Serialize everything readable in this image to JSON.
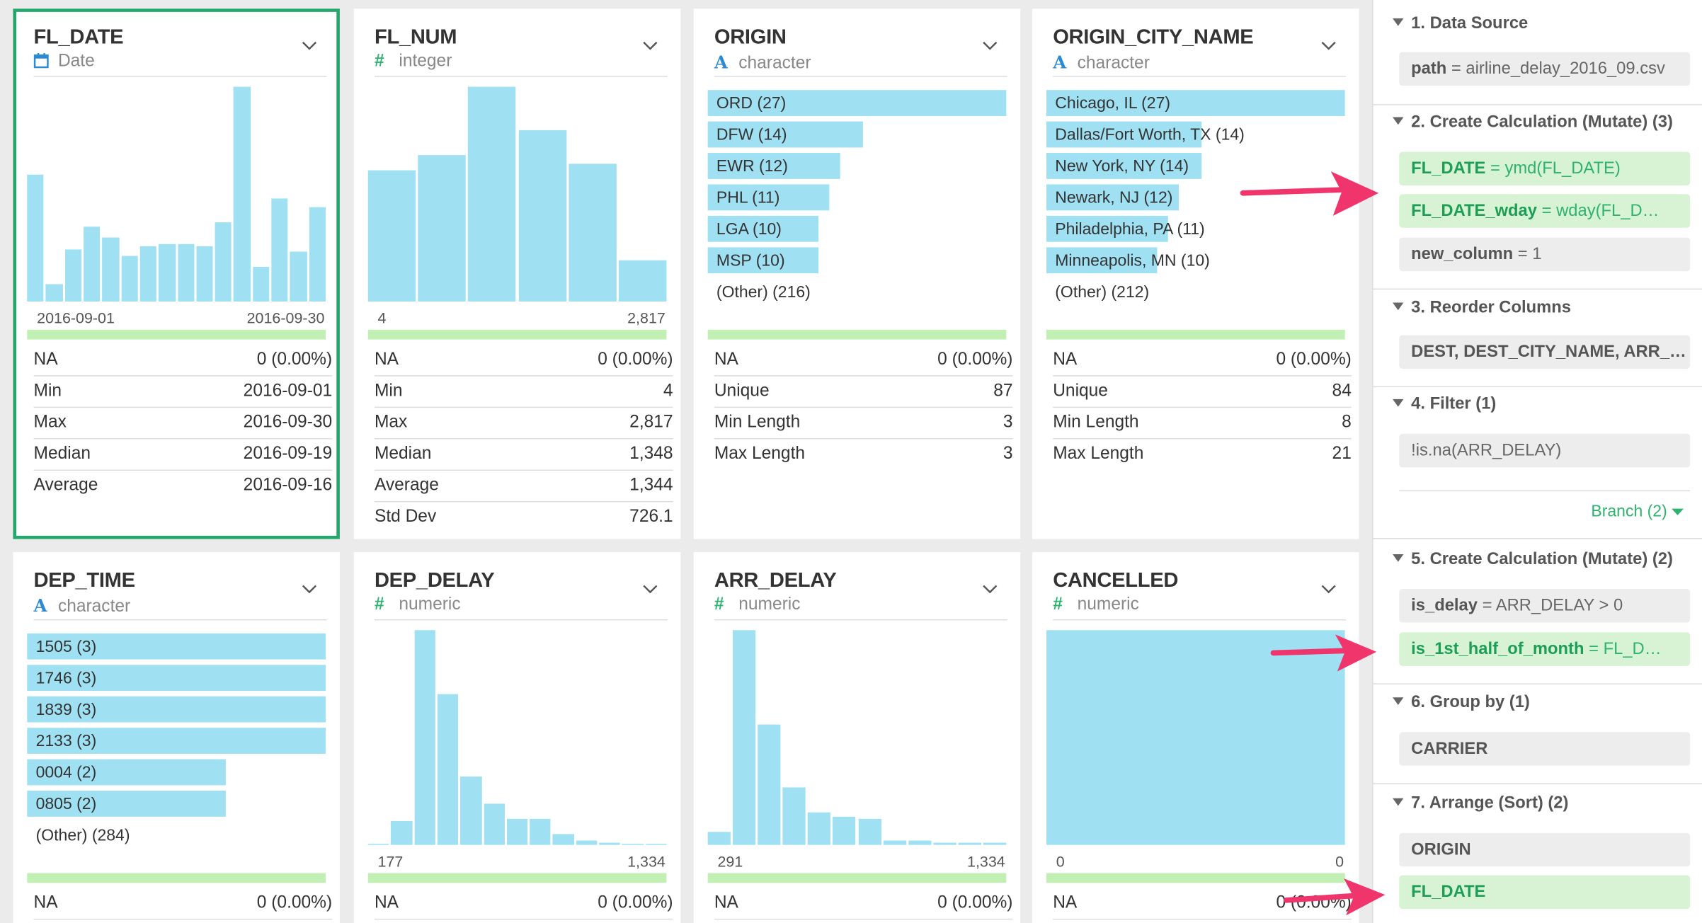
{
  "colors": {
    "bar": "#9fe0f2",
    "accent_green": "#22a86a",
    "arrow": "#f0356c",
    "quality_bar": "#c2efb4"
  },
  "columns": [
    {
      "name": "FL_DATE",
      "type": "Date",
      "icon": "calendar-icon",
      "hist": [
        0.59,
        0.08,
        0.24,
        0.35,
        0.3,
        0.21,
        0.26,
        0.27,
        0.27,
        0.26,
        0.37,
        1.0,
        0.16,
        0.48,
        0.23,
        0.44
      ],
      "axis_min": "2016-09-01",
      "axis_max": "2016-09-30",
      "stats": [
        [
          "NA",
          "0 (0.00%)"
        ],
        [
          "Min",
          "2016-09-01"
        ],
        [
          "Max",
          "2016-09-30"
        ],
        [
          "Median",
          "2016-09-19"
        ],
        [
          "Average",
          "2016-09-16"
        ]
      ]
    },
    {
      "name": "FL_NUM",
      "type": "integer",
      "icon": "hash-icon",
      "hist": [
        0.61,
        0.68,
        1.0,
        0.8,
        0.64,
        0.19
      ],
      "axis_min": "4",
      "axis_max": "2,817",
      "stats": [
        [
          "NA",
          "0 (0.00%)"
        ],
        [
          "Min",
          "4"
        ],
        [
          "Max",
          "2,817"
        ],
        [
          "Median",
          "1,348"
        ],
        [
          "Average",
          "1,344"
        ],
        [
          "Std Dev",
          "726.1"
        ]
      ]
    },
    {
      "name": "ORIGIN",
      "type": "character",
      "icon": "letter-a-icon",
      "cats": [
        [
          "ORD (27)",
          27
        ],
        [
          "DFW (14)",
          14
        ],
        [
          "EWR (12)",
          12
        ],
        [
          "PHL (11)",
          11
        ],
        [
          "LGA (10)",
          10
        ],
        [
          "MSP (10)",
          10
        ]
      ],
      "other": "(Other) (216)",
      "stats": [
        [
          "NA",
          "0 (0.00%)"
        ],
        [
          "Unique",
          "87"
        ],
        [
          "Min Length",
          "3"
        ],
        [
          "Max Length",
          "3"
        ]
      ]
    },
    {
      "name": "ORIGIN_CITY_NAME",
      "type": "character",
      "icon": "letter-a-icon",
      "cats": [
        [
          "Chicago, IL (27)",
          27
        ],
        [
          "Dallas/Fort Worth, TX (14)",
          14
        ],
        [
          "New York, NY (14)",
          14
        ],
        [
          "Newark, NJ (12)",
          12
        ],
        [
          "Philadelphia, PA (11)",
          11
        ],
        [
          "Minneapolis, MN (10)",
          10
        ]
      ],
      "other": "(Other) (212)",
      "stats": [
        [
          "NA",
          "0 (0.00%)"
        ],
        [
          "Unique",
          "84"
        ],
        [
          "Min Length",
          "8"
        ],
        [
          "Max Length",
          "21"
        ]
      ]
    },
    {
      "name": "DEP_TIME",
      "type": "character",
      "icon": "letter-a-icon",
      "cats": [
        [
          "1505 (3)",
          3
        ],
        [
          "1746 (3)",
          3
        ],
        [
          "1839 (3)",
          3
        ],
        [
          "2133 (3)",
          3
        ],
        [
          "0004 (2)",
          2
        ],
        [
          "0805 (2)",
          2
        ]
      ],
      "other": "(Other) (284)",
      "stats": [
        [
          "NA",
          "0 (0.00%)"
        ]
      ]
    },
    {
      "name": "DEP_DELAY",
      "type": "numeric",
      "icon": "hash-icon",
      "hist": [
        0.0,
        0.11,
        1.0,
        0.7,
        0.32,
        0.19,
        0.12,
        0.12,
        0.05,
        0.02,
        0.01,
        0.0,
        0.0
      ],
      "axis_min": "177",
      "axis_max": "1,334",
      "stats": [
        [
          "NA",
          "0 (0.00%)"
        ]
      ]
    },
    {
      "name": "ARR_DELAY",
      "type": "numeric",
      "icon": "hash-icon",
      "hist": [
        0.06,
        1.0,
        0.56,
        0.27,
        0.15,
        0.13,
        0.12,
        0.02,
        0.02,
        0.01,
        0.01,
        0.01
      ],
      "axis_min": "291",
      "axis_max": "1,334",
      "stats": [
        [
          "NA",
          "0 (0.00%)"
        ]
      ]
    },
    {
      "name": "CANCELLED",
      "type": "numeric",
      "icon": "hash-icon",
      "hist": [
        1.0
      ],
      "axis_min": "0",
      "axis_max": "0",
      "stats": [
        [
          "NA",
          "0 (0.00%)"
        ]
      ]
    }
  ],
  "steps": [
    {
      "title": "1. Data Source",
      "items": [
        {
          "k": "path",
          "op": " = ",
          "v": "airline_delay_2016_09.csv",
          "green": false
        }
      ]
    },
    {
      "title": "2. Create Calculation (Mutate) (3)",
      "items": [
        {
          "k": "FL_DATE",
          "op": " = ",
          "v": "ymd(FL_DATE)",
          "green": true
        },
        {
          "k": "FL_DATE_wday",
          "op": " = ",
          "v": "wday(FL_D…",
          "green": true
        },
        {
          "k": "new_column",
          "op": " = ",
          "v": "1",
          "green": false
        }
      ]
    },
    {
      "title": "3. Reorder Columns",
      "items": [
        {
          "k": "DEST, DEST_CITY_NAME, ARR_…",
          "op": "",
          "v": "",
          "green": false
        }
      ]
    },
    {
      "title": "4. Filter (1)",
      "items": [
        {
          "k": "",
          "op": "",
          "v": "!is.na(ARR_DELAY)",
          "green": false
        }
      ],
      "branch": "Branch (2)"
    },
    {
      "title": "5. Create Calculation (Mutate) (2)",
      "items": [
        {
          "k": "is_delay",
          "op": " = ",
          "v": "ARR_DELAY > 0",
          "green": false
        },
        {
          "k": "is_1st_half_of_month",
          "op": " = ",
          "v": "FL_D…",
          "green": true
        }
      ]
    },
    {
      "title": "6. Group by (1)",
      "items": [
        {
          "k": "CARRIER",
          "op": "",
          "v": "",
          "green": false
        }
      ]
    },
    {
      "title": "7. Arrange (Sort) (2)",
      "items": [
        {
          "k": "ORIGIN",
          "op": "",
          "v": "",
          "green": false
        },
        {
          "k": "FL_DATE",
          "op": "",
          "v": "",
          "green": true
        }
      ]
    }
  ]
}
